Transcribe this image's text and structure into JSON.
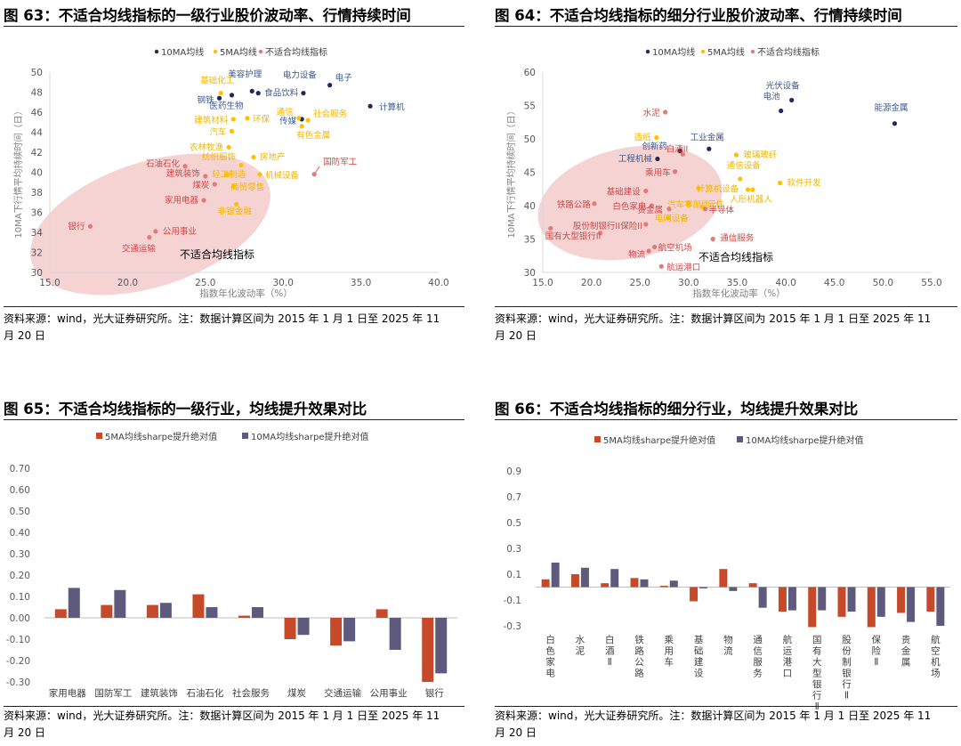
{
  "colors": {
    "ma10": "#1f2a5c",
    "ma5": "#ffc000",
    "nofit": "#e17a7a",
    "ellipse": "#f2c4c4",
    "bar5": "#c6492a",
    "bar10": "#5e5a7e",
    "nofit_label": "#c33a3a"
  },
  "panels": [
    {
      "title": "图 63：不适合均线指标的一级行业股价波动率、行情持续时间",
      "source_line1": "资料来源：wind，光大证券研究所。注：数据计算区间为 2015 年 1 月 1 日至 2025 年 11",
      "source_line2": "月 20 日"
    },
    {
      "title": "图 64：不适合均线指标的细分行业股价波动率、行情持续时间",
      "source_line1": "资料来源：wind，光大证券研究所。注：数据计算区间为 2015 年 1 月 1 日至 2025 年 11",
      "source_line2": "月 20 日"
    },
    {
      "title": "图 65：不适合均线指标的一级行业，均线提升效果对比",
      "source_line1": "资料来源：wind，光大证券研究所。注：数据计算区间为 2015 年 1 月 1 日至 2025 年 11",
      "source_line2": "月 20 日"
    },
    {
      "title": "图 66：不适合均线指标的细分行业，均线提升效果对比",
      "source_line1": "资料来源：wind，光大证券研究所。注：数据计算区间为 2015 年 1 月 1 日至 2025 年 11",
      "source_line2": "月 20 日"
    }
  ],
  "chart_data": [
    {
      "type": "scatter",
      "title": "不适合均线指标的一级行业股价波动率、行情持续时间",
      "xlabel": "指数年化波动率（%）",
      "ylabel": "10MA下行情平均持续时间（日）",
      "xlim": [
        15,
        40
      ],
      "xticks": [
        15.0,
        20.0,
        25.0,
        30.0,
        35.0,
        40.0
      ],
      "ylim": [
        30,
        50
      ],
      "yticks": [
        30,
        32,
        34,
        36,
        38,
        40,
        42,
        44,
        46,
        48,
        50
      ],
      "legend": [
        "10MA均线",
        "5MA均线",
        "不适合均线指标"
      ],
      "annotation": "不适合均线指标",
      "series": [
        {
          "name": "10MA均线",
          "points": [
            {
              "label": "电子",
              "x": 33.0,
              "y": 48.7
            },
            {
              "label": "电力设备",
              "x": 31.3,
              "y": 47.9
            },
            {
              "label": "美容护理",
              "x": 28.0,
              "y": 48.1
            },
            {
              "label": "食品饮料",
              "x": 28.4,
              "y": 47.9
            },
            {
              "label": "医药生物",
              "x": 26.7,
              "y": 47.7
            },
            {
              "label": "钢铁",
              "x": 25.9,
              "y": 47.4
            },
            {
              "label": "计算机",
              "x": 35.6,
              "y": 46.6
            },
            {
              "label": "传媒",
              "x": 31.2,
              "y": 45.3
            }
          ]
        },
        {
          "name": "5MA均线",
          "points": [
            {
              "label": "基础化工",
              "x": 26.0,
              "y": 47.9
            },
            {
              "label": "通信",
              "x": 31.0,
              "y": 45.4
            },
            {
              "label": "社会服务",
              "x": 31.6,
              "y": 45.2
            },
            {
              "label": "建筑材料",
              "x": 26.8,
              "y": 45.3
            },
            {
              "label": "环保",
              "x": 27.7,
              "y": 45.4
            },
            {
              "label": "汽车",
              "x": 26.7,
              "y": 44.1
            },
            {
              "label": "有色金属",
              "x": 31.2,
              "y": 44.6
            },
            {
              "label": "农林牧渔",
              "x": 26.5,
              "y": 42.5
            },
            {
              "label": "房地产",
              "x": 28.1,
              "y": 41.5
            },
            {
              "label": "纺织服饰",
              "x": 27.3,
              "y": 40.7
            },
            {
              "label": "机械设备",
              "x": 28.5,
              "y": 39.8
            },
            {
              "label": "轻工制造",
              "x": 26.4,
              "y": 39.8
            },
            {
              "label": "商贸零售",
              "x": 26.8,
              "y": 38.6
            },
            {
              "label": "非银金融",
              "x": 27.0,
              "y": 36.8
            }
          ]
        },
        {
          "name": "不适合均线指标",
          "points": [
            {
              "label": "国防军工",
              "x": 32.0,
              "y": 39.8
            },
            {
              "label": "石油石化",
              "x": 23.7,
              "y": 40.6
            },
            {
              "label": "建筑装饰",
              "x": 25.0,
              "y": 39.6
            },
            {
              "label": "煤炭",
              "x": 25.6,
              "y": 38.8
            },
            {
              "label": "家用电器",
              "x": 24.9,
              "y": 37.2
            },
            {
              "label": "银行",
              "x": 17.6,
              "y": 34.6
            },
            {
              "label": "公用事业",
              "x": 21.8,
              "y": 34.1
            },
            {
              "label": "交通运输",
              "x": 21.4,
              "y": 33.5
            }
          ]
        }
      ]
    },
    {
      "type": "scatter",
      "title": "不适合均线指标的细分行业股价波动率、行情持续时间",
      "xlabel": "指数年化波动率（%）",
      "ylabel": "10MA下行情平均持续时间（日）",
      "xlim": [
        15,
        55
      ],
      "xticks": [
        15.0,
        20.0,
        25.0,
        30.0,
        35.0,
        40.0,
        45.0,
        50.0,
        55.0
      ],
      "ylim": [
        30,
        60
      ],
      "yticks": [
        30,
        35,
        40,
        45,
        50,
        55,
        60
      ],
      "legend": [
        "10MA均线",
        "5MA均线",
        "不适合均线指标"
      ],
      "annotation": "不适合均线指标",
      "series": [
        {
          "name": "10MA均线",
          "points": [
            {
              "label": "光伏设备",
              "x": 40.6,
              "y": 55.8
            },
            {
              "label": "电池",
              "x": 39.5,
              "y": 54.2
            },
            {
              "label": "能源金属",
              "x": 51.2,
              "y": 52.3
            },
            {
              "label": "工业金属",
              "x": 32.1,
              "y": 48.5
            },
            {
              "label": "创新药",
              "x": 29.1,
              "y": 48.2
            },
            {
              "label": "工程机械",
              "x": 26.8,
              "y": 47.0
            }
          ]
        },
        {
          "name": "5MA均线",
          "points": [
            {
              "label": "造纸",
              "x": 26.7,
              "y": 50.2
            },
            {
              "label": "玻璃玻纤",
              "x": 34.9,
              "y": 47.6
            },
            {
              "label": "通信设备",
              "x": 35.3,
              "y": 44.0
            },
            {
              "label": "软件开发",
              "x": 39.4,
              "y": 43.4
            },
            {
              "label": "计算机设备",
              "x": 31.0,
              "y": 42.6
            },
            {
              "label": "",
              "x": 36.1,
              "y": 42.4
            },
            {
              "label": "人形机器人",
              "x": 36.6,
              "y": 42.4
            },
            {
              "label": "汽车零部件",
              "x": 30.0,
              "y": 40.3
            },
            {
              "label": "元件",
              "x": 31.4,
              "y": 39.8
            },
            {
              "label": "电网设备",
              "x": 27.9,
              "y": 38.2
            }
          ]
        },
        {
          "name": "不适合均线指标",
          "points": [
            {
              "label": "水泥",
              "x": 27.6,
              "y": 54.0
            },
            {
              "label": "白酒II",
              "x": 29.4,
              "y": 47.7
            },
            {
              "label": "乘用车",
              "x": 28.6,
              "y": 45.1
            },
            {
              "label": "基础建设",
              "x": 25.6,
              "y": 42.2
            },
            {
              "label": "铁路公路",
              "x": 20.3,
              "y": 40.3
            },
            {
              "label": "白色家电",
              "x": 26.2,
              "y": 40.0
            },
            {
              "label": "贵金属",
              "x": 28.0,
              "y": 39.5
            },
            {
              "label": "半导体",
              "x": 31.7,
              "y": 39.5
            },
            {
              "label": "保险II",
              "x": 25.6,
              "y": 37.2
            },
            {
              "label": "通信服务",
              "x": 32.5,
              "y": 35.0
            },
            {
              "label": "股份制银行II",
              "x": 20.9,
              "y": 35.9
            },
            {
              "label": "航空机场",
              "x": 26.5,
              "y": 33.8
            },
            {
              "label": "物流",
              "x": 25.9,
              "y": 33.2
            },
            {
              "label": "国有大型银行II",
              "x": 15.8,
              "y": 36.6
            },
            {
              "label": "航运港口",
              "x": 27.2,
              "y": 30.9
            }
          ]
        }
      ]
    },
    {
      "type": "bar",
      "title": "不适合均线指标的一级行业，均线提升效果对比",
      "categories": [
        "家用电器",
        "国防军工",
        "建筑装饰",
        "石油石化",
        "社会服务",
        "煤炭",
        "交通运输",
        "公用事业",
        "银行"
      ],
      "series": [
        {
          "name": "5MA均线sharpe提升绝对值",
          "values": [
            0.04,
            0.06,
            0.06,
            0.11,
            0.01,
            -0.1,
            -0.13,
            0.04,
            -0.3
          ]
        },
        {
          "name": "10MA均线sharpe提升绝对值",
          "values": [
            0.14,
            0.13,
            0.07,
            0.05,
            0.05,
            -0.08,
            -0.11,
            -0.15,
            -0.26
          ]
        }
      ],
      "ylim": [
        -0.3,
        0.7
      ],
      "yticks": [
        "-0.30",
        "-0.20",
        "-0.10",
        "0.00",
        "0.10",
        "0.20",
        "0.30",
        "0.40",
        "0.50",
        "0.60",
        "0.70"
      ],
      "xlabel": "",
      "ylabel": ""
    },
    {
      "type": "bar",
      "title": "不适合均线指标的细分行业，均线提升效果对比",
      "categories": [
        "白色家电",
        "水泥",
        "白酒II",
        "铁路公路",
        "乘用车",
        "基础建设",
        "物流",
        "通信服务",
        "航运港口",
        "国有大型银行II",
        "股份制银行II",
        "保险II",
        "贵金属",
        "航空机场"
      ],
      "category_lines": [
        [
          "白",
          "色",
          "家",
          "电"
        ],
        [
          "水",
          "泥"
        ],
        [
          "白",
          "酒",
          "Ⅱ"
        ],
        [
          "铁",
          "路",
          "公",
          "路"
        ],
        [
          "乘",
          "用",
          "车"
        ],
        [
          "基",
          "础",
          "建",
          "设"
        ],
        [
          "物",
          "流"
        ],
        [
          "通",
          "信",
          "服",
          "务"
        ],
        [
          "航",
          "运",
          "港",
          "口"
        ],
        [
          "国",
          "有",
          "大",
          "型",
          "银",
          "行",
          "Ⅱ"
        ],
        [
          "股",
          "份",
          "制",
          "银",
          "行",
          "Ⅱ"
        ],
        [
          "保",
          "险",
          "Ⅱ"
        ],
        [
          "贵",
          "金",
          "属"
        ],
        [
          "航",
          "空",
          "机",
          "场"
        ]
      ],
      "series": [
        {
          "name": "5MA均线sharpe提升绝对值",
          "values": [
            0.06,
            0.1,
            0.03,
            0.07,
            0.01,
            -0.11,
            0.14,
            0.03,
            -0.19,
            -0.31,
            -0.23,
            -0.31,
            -0.2,
            -0.19
          ]
        },
        {
          "name": "10MA均线sharpe提升绝对值",
          "values": [
            0.19,
            0.15,
            0.14,
            0.06,
            0.05,
            -0.01,
            -0.03,
            -0.16,
            -0.18,
            -0.18,
            -0.19,
            -0.23,
            -0.27,
            -0.3
          ]
        }
      ],
      "ylim": [
        -0.3,
        0.9
      ],
      "yticks": [
        "-0.3",
        "-0.1",
        "0.1",
        "0.3",
        "0.5",
        "0.7",
        "0.9"
      ],
      "xlabel": "",
      "ylabel": ""
    }
  ]
}
